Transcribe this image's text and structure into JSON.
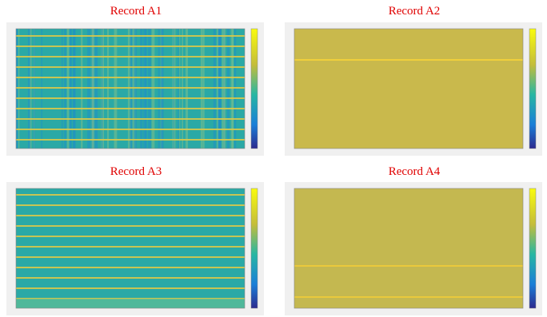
{
  "panels": [
    {
      "title": "Record A1"
    },
    {
      "title": "Record A2"
    },
    {
      "title": "Record A3"
    },
    {
      "title": "Record A4"
    }
  ]
}
